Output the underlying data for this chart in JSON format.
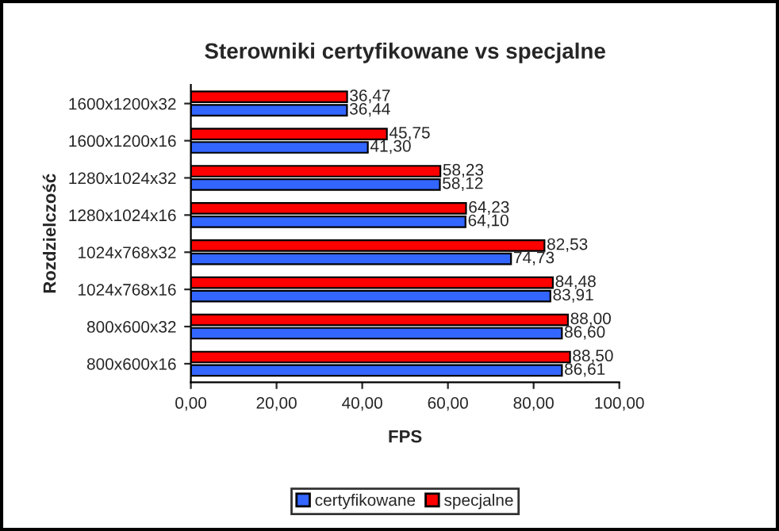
{
  "chart_data": {
    "type": "bar",
    "orientation": "horizontal",
    "title": "Sterowniki certyfikowane vs specjalne",
    "xlabel": "FPS",
    "ylabel": "Rozdzielczość",
    "categories": [
      "1600x1200x32",
      "1600x1200x16",
      "1280x1024x32",
      "1280x1024x16",
      "1024x768x32",
      "1024x768x16",
      "800x600x32",
      "800x600x16"
    ],
    "series": [
      {
        "name": "certyfikowane",
        "color": "#3366ff",
        "values": [
          36.44,
          41.3,
          58.12,
          64.1,
          74.73,
          83.91,
          86.6,
          86.61
        ],
        "value_labels": [
          "36,44",
          "41,30",
          "58,12",
          "64,10",
          "74,73",
          "83,91",
          "86,60",
          "86,61"
        ]
      },
      {
        "name": "specjalne",
        "color": "#ff0000",
        "values": [
          36.47,
          45.75,
          58.23,
          64.23,
          82.53,
          84.48,
          88.0,
          88.5
        ],
        "value_labels": [
          "36,47",
          "45,75",
          "58,23",
          "64,23",
          "82,53",
          "84,48",
          "88,00",
          "88,50"
        ]
      }
    ],
    "xlim": [
      0,
      100
    ],
    "xticks": [
      {
        "value": 0,
        "label": "0,00"
      },
      {
        "value": 20,
        "label": "20,00"
      },
      {
        "value": 40,
        "label": "40,00"
      },
      {
        "value": 60,
        "label": "60,00"
      },
      {
        "value": 80,
        "label": "80,00"
      },
      {
        "value": 100,
        "label": "100,00"
      }
    ],
    "grid": false,
    "legend": "bottom"
  }
}
